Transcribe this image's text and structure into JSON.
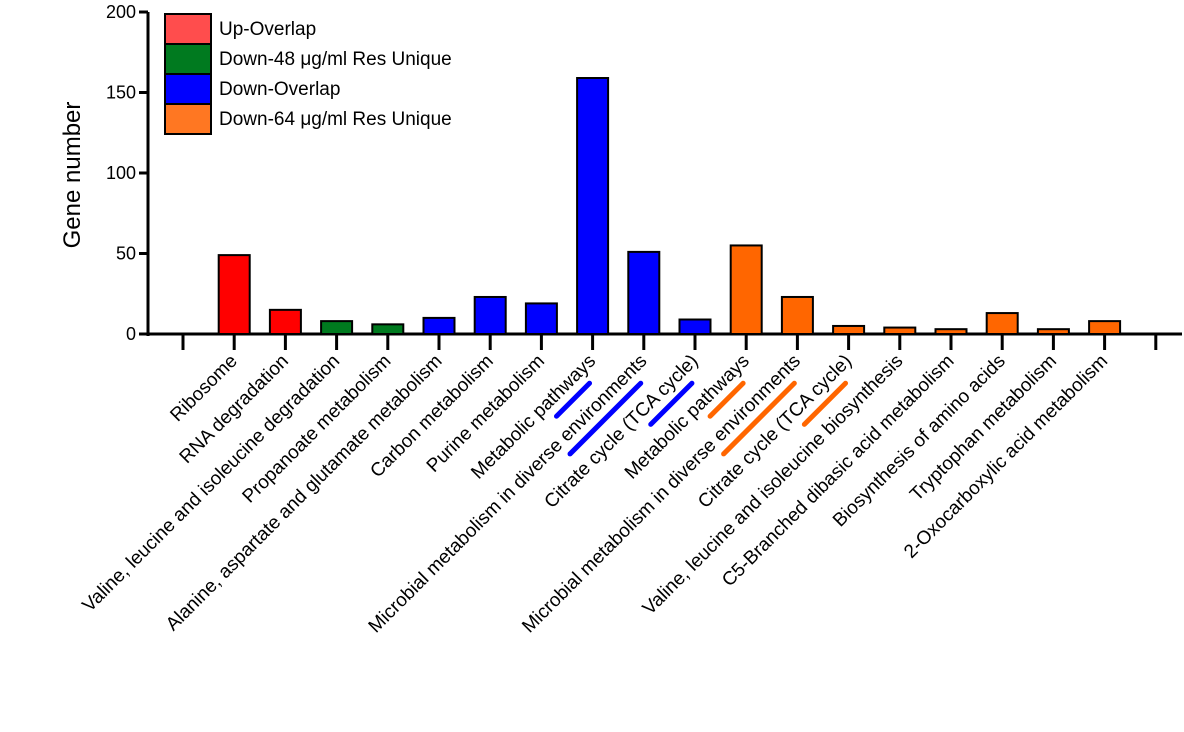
{
  "chart_data": {
    "type": "bar",
    "ylabel": "Gene number",
    "xlabel": "",
    "ylim": [
      0,
      200
    ],
    "yticks": [
      0,
      50,
      100,
      150,
      200
    ],
    "grid": false,
    "legend_position": "top-left",
    "series": [
      {
        "name": "Up-Overlap",
        "color": "#ff0000",
        "swatch_color": "#ff4d4d"
      },
      {
        "name": "Down-48 μg/ml Res Unique",
        "color": "#007a1f",
        "swatch_color": "#007a1f"
      },
      {
        "name": "Down-Overlap",
        "color": "#0000ff",
        "swatch_color": "#0000ff"
      },
      {
        "name": "Down-64 μg/ml Res Unique",
        "color": "#ff6600",
        "swatch_color": "#ff7722"
      }
    ],
    "categories": [
      "",
      "Ribosome",
      "RNA degradation",
      "Valine, leucine and isoleucine degradation",
      "Propanoate metabolism",
      "Alanine, aspartate and glutamate metabolism",
      "Carbon metabolism",
      "Purine metabolism",
      "Metabolic pathways",
      "Microbial metabolism in diverse environments",
      "Citrate cycle (TCA cycle)",
      "Metabolic pathways",
      "Microbial metabolism in diverse environments",
      "Citrate cycle (TCA cycle)",
      "Valine, leucine and isoleucine biosynthesis",
      "C5-Branched dibasic acid metabolism",
      "Biosynthesis of amino acids",
      "Tryptophan metabolism",
      "2-Oxocarboxylic acid metabolism",
      ""
    ],
    "values": [
      null,
      49,
      15,
      8,
      6,
      10,
      23,
      19,
      159,
      51,
      9,
      55,
      23,
      5,
      4,
      3,
      13,
      3,
      8,
      null
    ],
    "series_index": [
      null,
      0,
      0,
      1,
      1,
      2,
      2,
      2,
      2,
      2,
      2,
      3,
      3,
      3,
      3,
      3,
      3,
      3,
      3,
      null
    ],
    "underlined_categories": [
      {
        "index": 8,
        "color": "#0000ff"
      },
      {
        "index": 9,
        "color": "#0000ff"
      },
      {
        "index": 10,
        "color": "#0000ff"
      },
      {
        "index": 11,
        "color": "#ff6600"
      },
      {
        "index": 12,
        "color": "#ff6600"
      },
      {
        "index": 13,
        "color": "#ff6600"
      }
    ]
  }
}
